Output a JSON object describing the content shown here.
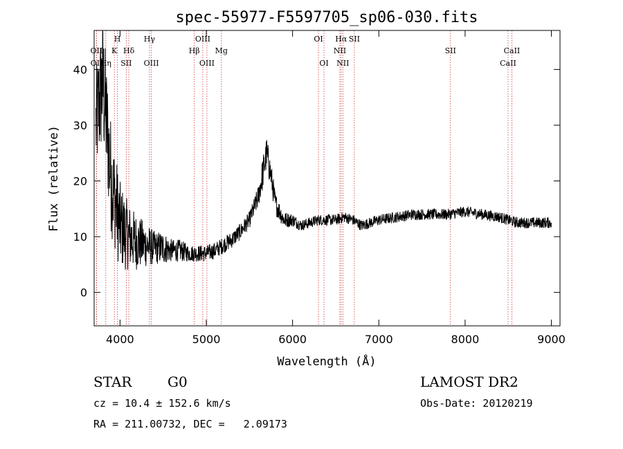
{
  "chart_data": {
    "type": "line",
    "title": "spec-55977-F5597705_sp06-030.fits",
    "xlabel": "Wavelength (Å)",
    "ylabel": "Flux (relative)",
    "xlim": [
      3700,
      9100
    ],
    "ylim": [
      -6,
      47
    ],
    "xticks": [
      4000,
      5000,
      6000,
      7000,
      8000,
      9000
    ],
    "yticks": [
      0,
      10,
      20,
      30,
      40
    ],
    "grid": false,
    "line_color": "#000000",
    "marker_color": "#cc3333",
    "spectrum_anchors": {
      "x": [
        3720,
        3800,
        3900,
        4000,
        4100,
        4200,
        4300,
        4400,
        4500,
        4600,
        4700,
        4800,
        4900,
        5000,
        5100,
        5200,
        5300,
        5400,
        5500,
        5600,
        5650,
        5700,
        5750,
        5800,
        5900,
        6000,
        6100,
        6200,
        6300,
        6400,
        6500,
        6600,
        6700,
        6800,
        6900,
        7000,
        7200,
        7400,
        7600,
        7800,
        8000,
        8200,
        8400,
        8600,
        8800,
        9000
      ],
      "y": [
        30,
        38,
        20,
        12,
        10,
        9,
        8.5,
        8,
        8,
        7.5,
        7.5,
        7,
        7,
        7,
        7.5,
        8.5,
        9.5,
        11,
        13,
        17,
        21,
        25,
        21,
        16,
        13,
        13,
        12,
        12.5,
        13,
        13,
        13,
        13.5,
        13,
        12,
        12.5,
        13,
        13.5,
        14,
        14,
        14,
        14.5,
        14,
        13.5,
        12.5,
        12.5,
        12.5
      ],
      "amplitude": [
        10,
        12,
        10,
        8,
        6,
        5,
        4,
        3,
        3,
        2,
        2,
        1.5,
        1.5,
        1.5,
        1.5,
        1.5,
        1.5,
        1.5,
        1.5,
        2,
        3,
        3,
        2.5,
        2,
        1.5,
        1.2,
        1,
        1,
        1,
        1,
        1,
        1,
        1,
        1,
        1,
        1,
        1,
        1,
        1,
        1,
        1,
        1,
        1,
        1,
        1,
        1
      ]
    },
    "spectral_lines": [
      {
        "label": "OII",
        "x": 3727,
        "row": 2
      },
      {
        "label": "OII",
        "x": 3729,
        "row": 3
      },
      {
        "label": "Hη",
        "x": 3835,
        "row": 3
      },
      {
        "label": "K",
        "x": 3934,
        "row": 2
      },
      {
        "label": "H",
        "x": 3969,
        "row": 1
      },
      {
        "label": "Hδ",
        "x": 4102,
        "row": 2
      },
      {
        "label": "SII",
        "x": 4072,
        "row": 3
      },
      {
        "label": "Hγ",
        "x": 4341,
        "row": 1
      },
      {
        "label": "OIII",
        "x": 4363,
        "row": 3
      },
      {
        "label": "Hβ",
        "x": 4861,
        "row": 2
      },
      {
        "label": "OIII",
        "x": 4959,
        "row": 1
      },
      {
        "label": "OIII",
        "x": 5007,
        "row": 3
      },
      {
        "label": "Mg",
        "x": 5175,
        "row": 2
      },
      {
        "label": "OI",
        "x": 6300,
        "row": 1
      },
      {
        "label": "OI",
        "x": 6364,
        "row": 3
      },
      {
        "label": "Hα",
        "x": 6563,
        "row": 1
      },
      {
        "label": "NII",
        "x": 6548,
        "row": 2
      },
      {
        "label": "NII",
        "x": 6583,
        "row": 3
      },
      {
        "label": "SII",
        "x": 6716,
        "row": 1
      },
      {
        "label": "SII",
        "x": 7830,
        "row": 2
      },
      {
        "label": "CaII",
        "x": 8542,
        "row": 2
      },
      {
        "label": "CaII",
        "x": 8498,
        "row": 3
      }
    ]
  },
  "info": {
    "class": "STAR",
    "subclass": "G0",
    "survey": "LAMOST DR2",
    "cz": "cz = 10.4 ± 152.6 km/s",
    "obs_date": "Obs-Date: 20120219",
    "coords": "RA = 211.00732, DEC =   2.09173"
  }
}
